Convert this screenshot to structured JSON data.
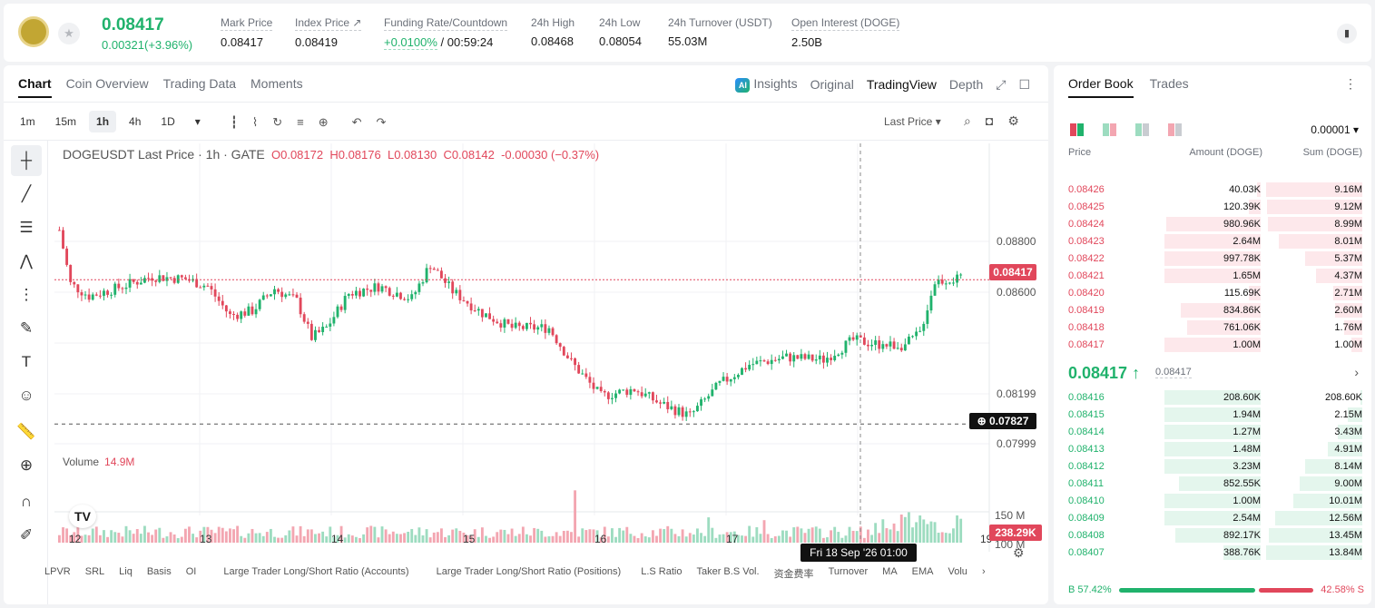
{
  "ticker": {
    "price": "0.08417",
    "change": "0.00321(+3.96%)"
  },
  "stats": [
    {
      "label": "Mark Price",
      "value": "0.08417"
    },
    {
      "label": "Index Price ↗",
      "value": "0.08419"
    },
    {
      "label": "Funding Rate/Countdown",
      "value_green": "+0.0100%",
      "value": "/ 00:59:24"
    },
    {
      "label": "24h High",
      "value": "0.08468"
    },
    {
      "label": "24h Low",
      "value": "0.08054"
    },
    {
      "label": "24h Turnover (USDT)",
      "value": "55.03M"
    },
    {
      "label": "Open Interest (DOGE)",
      "value": "2.50B"
    }
  ],
  "chart_tabs": [
    "Chart",
    "Coin Overview",
    "Trading Data",
    "Moments"
  ],
  "view_tabs": {
    "insights": "Insights",
    "original": "Original",
    "tradingview": "TradingView",
    "depth": "Depth"
  },
  "timeframes": [
    "1m",
    "15m",
    "1h",
    "4h",
    "1D"
  ],
  "last_price_select": "Last Price",
  "legend": {
    "symbol": "DOGEUSDT Last Price · 1h · GATE",
    "o": "O0.08172",
    "h": "H0.08176",
    "l": "L0.08130",
    "c": "C0.08142",
    "chg": "-0.00030 (−0.37%)"
  },
  "volume_label": {
    "name": "Volume",
    "value": "14.9M"
  },
  "price_badge": "0.08417",
  "cursor_badge": "0.07827",
  "vol_badge": "238.29K",
  "crosshair_time": "Fri 18 Sep '26   01:00",
  "bottom_indicators": [
    "LPVR",
    "SRL",
    "Liq",
    "Basis",
    "OI",
    "Large Trader Long/Short Ratio (Accounts)",
    "Large Trader Long/Short Ratio (Positions)",
    "L.S Ratio",
    "Taker B.S Vol.",
    "资金费率",
    "Turnover",
    "MA",
    "EMA",
    "Volu"
  ],
  "colors": {
    "up": "#20b26c",
    "down": "#e1475b",
    "up_vol": "#9ddcc0",
    "down_vol": "#f3a6b1"
  },
  "chart_data": {
    "type": "candlestick",
    "title": "DOGEUSDT Last Price · 1h · GATE",
    "x_ticks": [
      "12",
      "13",
      "14",
      "15",
      "16",
      "17",
      "19"
    ],
    "y_ticks": [
      "0.08800",
      "0.08600",
      "0.08199",
      "0.07999"
    ],
    "vol_ticks": [
      "150 M",
      "100 M",
      "50 M"
    ],
    "ylim": [
      0.0775,
      0.089
    ],
    "anchors": [
      [
        0,
        0.0862
      ],
      [
        3,
        0.084
      ],
      [
        8,
        0.0835
      ],
      [
        15,
        0.0838
      ],
      [
        25,
        0.0843
      ],
      [
        34,
        0.0842
      ],
      [
        40,
        0.0839
      ],
      [
        46,
        0.0827
      ],
      [
        52,
        0.0829
      ],
      [
        58,
        0.0838
      ],
      [
        64,
        0.0833
      ],
      [
        68,
        0.0818
      ],
      [
        72,
        0.0822
      ],
      [
        78,
        0.0836
      ],
      [
        86,
        0.0839
      ],
      [
        95,
        0.0834
      ],
      [
        100,
        0.0848
      ],
      [
        106,
        0.0837
      ],
      [
        114,
        0.0828
      ],
      [
        122,
        0.0822
      ],
      [
        132,
        0.0822
      ],
      [
        138,
        0.0808
      ],
      [
        146,
        0.0794
      ],
      [
        155,
        0.0797
      ],
      [
        162,
        0.0791
      ],
      [
        170,
        0.0786
      ],
      [
        178,
        0.0799
      ],
      [
        186,
        0.0807
      ],
      [
        196,
        0.081
      ],
      [
        206,
        0.0809
      ],
      [
        214,
        0.0817
      ],
      [
        222,
        0.0815
      ],
      [
        228,
        0.0815
      ],
      [
        232,
        0.082
      ],
      [
        236,
        0.0841
      ],
      [
        240,
        0.0842
      ],
      [
        243,
        0.08417
      ]
    ],
    "n_candles": 244,
    "volume_spike": 150,
    "current_price": 0.08417,
    "cursor_price": 0.07827
  },
  "orderbook": {
    "tabs": [
      "Order Book",
      "Trades"
    ],
    "tick": "0.00001 ▾",
    "headers": {
      "price": "Price",
      "amount": "Amount (DOGE)",
      "sum": "Sum (DOGE)"
    },
    "asks": [
      {
        "p": "0.08426",
        "a": "40.03K",
        "s": "9.16M",
        "af": 0.04,
        "sf": 1.0
      },
      {
        "p": "0.08425",
        "a": "120.39K",
        "s": "9.12M",
        "af": 0.12,
        "sf": 0.995
      },
      {
        "p": "0.08424",
        "a": "980.96K",
        "s": "8.99M",
        "af": 0.98,
        "sf": 0.98
      },
      {
        "p": "0.08423",
        "a": "2.64M",
        "s": "8.01M",
        "af": 1.0,
        "sf": 0.87
      },
      {
        "p": "0.08422",
        "a": "997.78K",
        "s": "5.37M",
        "af": 1.0,
        "sf": 0.59
      },
      {
        "p": "0.08421",
        "a": "1.65M",
        "s": "4.37M",
        "af": 1.0,
        "sf": 0.48
      },
      {
        "p": "0.08420",
        "a": "115.69K",
        "s": "2.71M",
        "af": 0.12,
        "sf": 0.3
      },
      {
        "p": "0.08419",
        "a": "834.86K",
        "s": "2.60M",
        "af": 0.83,
        "sf": 0.28
      },
      {
        "p": "0.08418",
        "a": "761.06K",
        "s": "1.76M",
        "af": 0.76,
        "sf": 0.19
      },
      {
        "p": "0.08417",
        "a": "1.00M",
        "s": "1.00M",
        "af": 1.0,
        "sf": 0.11
      }
    ],
    "mid_price": "0.08417 ↑",
    "mark": "0.08417",
    "bids": [
      {
        "p": "0.08416",
        "a": "208.60K",
        "s": "208.60K",
        "af": 1.0,
        "sf": 0.02
      },
      {
        "p": "0.08415",
        "a": "1.94M",
        "s": "2.15M",
        "af": 1.0,
        "sf": 0.15
      },
      {
        "p": "0.08414",
        "a": "1.27M",
        "s": "3.43M",
        "af": 1.0,
        "sf": 0.25
      },
      {
        "p": "0.08413",
        "a": "1.48M",
        "s": "4.91M",
        "af": 1.0,
        "sf": 0.36
      },
      {
        "p": "0.08412",
        "a": "3.23M",
        "s": "8.14M",
        "af": 1.0,
        "sf": 0.59
      },
      {
        "p": "0.08411",
        "a": "852.55K",
        "s": "9.00M",
        "af": 0.85,
        "sf": 0.65
      },
      {
        "p": "0.08410",
        "a": "1.00M",
        "s": "10.01M",
        "af": 1.0,
        "sf": 0.72
      },
      {
        "p": "0.08409",
        "a": "2.54M",
        "s": "12.56M",
        "af": 1.0,
        "sf": 0.91
      },
      {
        "p": "0.08408",
        "a": "892.17K",
        "s": "13.45M",
        "af": 0.89,
        "sf": 0.97
      },
      {
        "p": "0.08407",
        "a": "388.76K",
        "s": "13.84M",
        "af": 0.39,
        "sf": 1.0
      }
    ],
    "buy_ratio": "B 57.42%",
    "sell_ratio": "42.58% S"
  }
}
